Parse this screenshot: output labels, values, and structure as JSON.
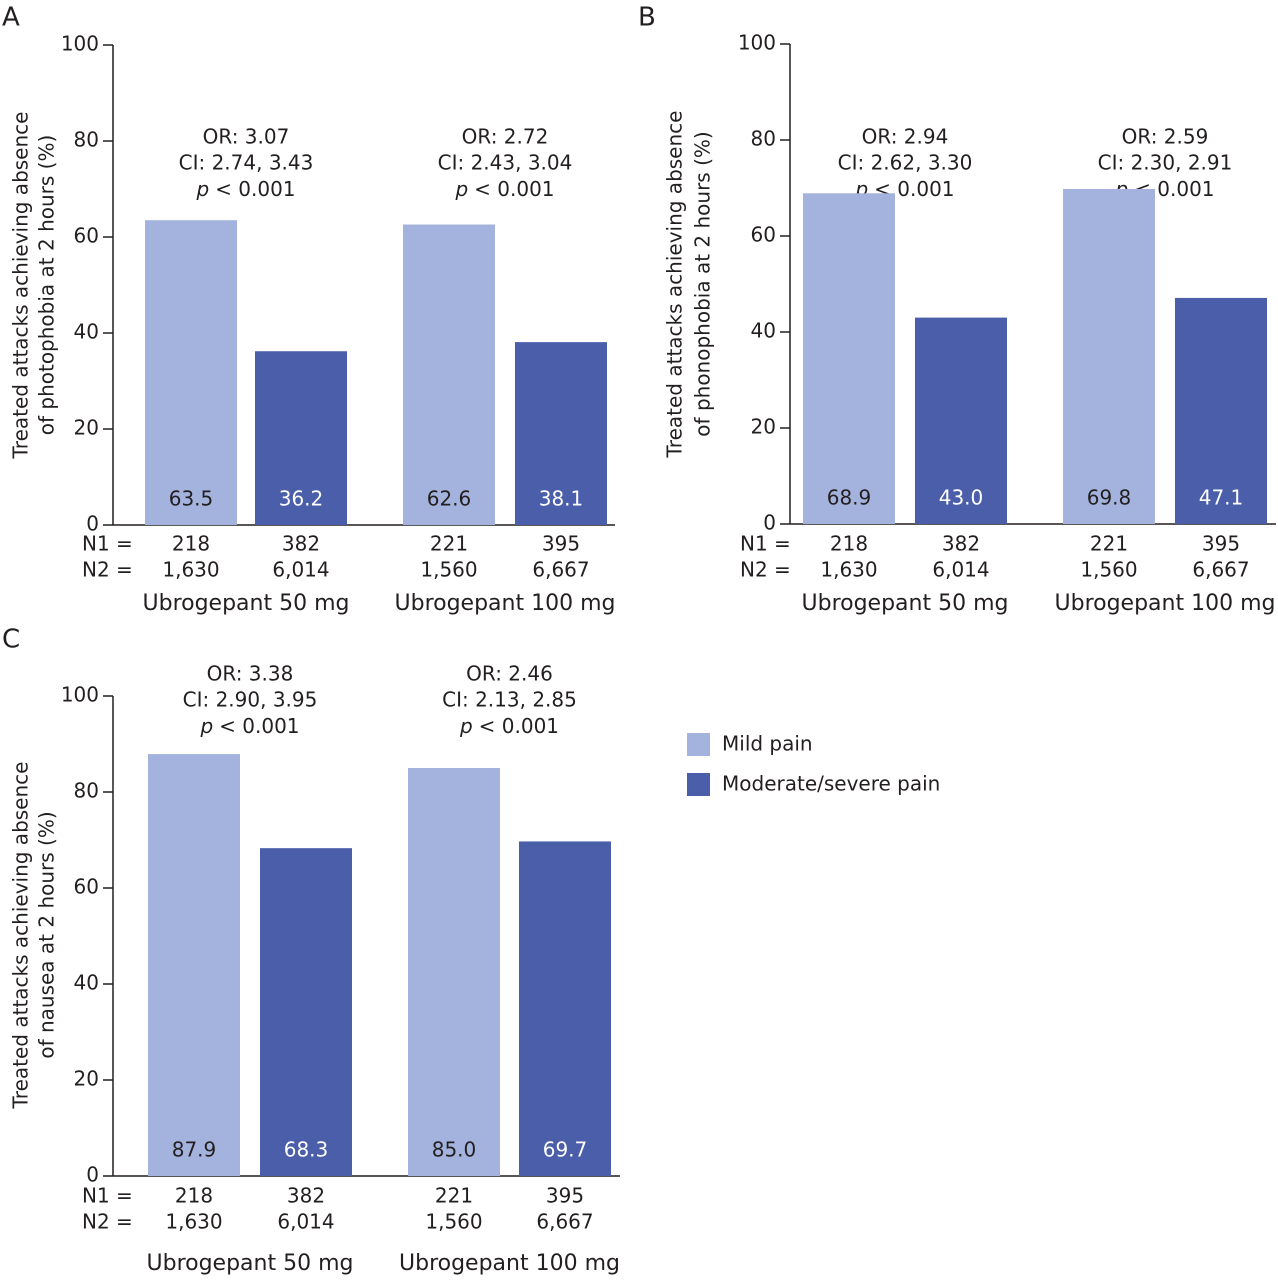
{
  "chart_data": [
    {
      "type": "bar",
      "panel": "A",
      "ylabel": [
        "Treated attacks achieving absence",
        "of photophobia at 2 hours (%)"
      ],
      "categories": [
        "Ubrogepant 50 mg",
        "Ubrogepant 100 mg"
      ],
      "ylim": [
        0,
        100
      ],
      "yticks": [
        0,
        20,
        40,
        60,
        80,
        100
      ],
      "n_row_labels": [
        "N1 =",
        "N2 ="
      ],
      "series": [
        {
          "name": "Mild pain",
          "color": "#a3b3dd",
          "values": [
            63.5,
            62.6
          ],
          "value_labels": [
            "63.5",
            "62.6"
          ],
          "n1": [
            218,
            221
          ],
          "n2": [
            {
              "value": 1630,
              "label": "1,630"
            },
            {
              "value": 1560,
              "label": "1,560"
            }
          ]
        },
        {
          "name": "Moderate/severe pain",
          "color": "#4b5eaa",
          "values": [
            36.2,
            38.1
          ],
          "value_labels": [
            "36.2",
            "38.1"
          ],
          "n1": [
            382,
            395
          ],
          "n2": [
            {
              "value": 6014,
              "label": "6,014"
            },
            {
              "value": 6667,
              "label": "6,667"
            }
          ]
        }
      ],
      "annotations": [
        {
          "or": "OR: 3.07",
          "ci": "CI: 2.74, 3.43",
          "p": "p",
          "p_text": "< 0.001"
        },
        {
          "or": "OR: 2.72",
          "ci": "CI: 2.43, 3.04",
          "p": "p",
          "p_text": "< 0.001"
        }
      ]
    },
    {
      "type": "bar",
      "panel": "B",
      "ylabel": [
        "Treated attacks achieving absence",
        "of phonophobia at 2 hours (%)"
      ],
      "categories": [
        "Ubrogepant 50 mg",
        "Ubrogepant 100 mg"
      ],
      "ylim": [
        0,
        100
      ],
      "yticks": [
        0,
        20,
        40,
        60,
        80,
        100
      ],
      "n_row_labels": [
        "N1 =",
        "N2 ="
      ],
      "series": [
        {
          "name": "Mild pain",
          "color": "#a3b3dd",
          "values": [
            68.9,
            69.8
          ],
          "value_labels": [
            "68.9",
            "69.8"
          ],
          "n1": [
            218,
            221
          ],
          "n2": [
            {
              "value": 1630,
              "label": "1,630"
            },
            {
              "value": 1560,
              "label": "1,560"
            }
          ]
        },
        {
          "name": "Moderate/severe pain",
          "color": "#4b5eaa",
          "values": [
            43,
            47.1
          ],
          "value_labels": [
            "43.0",
            "47.1"
          ],
          "n1": [
            382,
            395
          ],
          "n2": [
            {
              "value": 6014,
              "label": "6,014"
            },
            {
              "value": 6667,
              "label": "6,667"
            }
          ]
        }
      ],
      "annotations": [
        {
          "or": "OR: 2.94",
          "ci": "CI: 2.62, 3.30",
          "p": "p",
          "p_text": "< 0.001"
        },
        {
          "or": "OR: 2.59",
          "ci": "CI: 2.30, 2.91",
          "p": "p",
          "p_text": "< 0.001"
        }
      ]
    },
    {
      "type": "bar",
      "panel": "C",
      "ylabel": [
        "Treated attacks achieving absence",
        "of nausea at 2 hours (%)"
      ],
      "categories": [
        "Ubrogepant 50 mg",
        "Ubrogepant 100 mg"
      ],
      "ylim": [
        0,
        100
      ],
      "yticks": [
        0,
        20,
        40,
        60,
        80,
        100
      ],
      "n_row_labels": [
        "N1 =",
        "N2 ="
      ],
      "series": [
        {
          "name": "Mild pain",
          "color": "#a3b3dd",
          "values": [
            87.9,
            85
          ],
          "value_labels": [
            "87.9",
            "85.0"
          ],
          "n1": [
            218,
            221
          ],
          "n2": [
            {
              "value": 1630,
              "label": "1,630"
            },
            {
              "value": 1560,
              "label": "1,560"
            }
          ]
        },
        {
          "name": "Moderate/severe pain",
          "color": "#4b5eaa",
          "values": [
            68.3,
            69.7
          ],
          "value_labels": [
            "68.3",
            "69.7"
          ],
          "n1": [
            382,
            395
          ],
          "n2": [
            {
              "value": 6014,
              "label": "6,014"
            },
            {
              "value": 6667,
              "label": "6,667"
            }
          ]
        }
      ],
      "annotations": [
        {
          "or": "OR: 3.38",
          "ci": "CI: 2.90, 3.95",
          "p": "p",
          "p_text": "< 0.001"
        },
        {
          "or": "OR: 2.46",
          "ci": "CI: 2.13, 2.85",
          "p": "p",
          "p_text": "< 0.001"
        }
      ]
    }
  ]
}
